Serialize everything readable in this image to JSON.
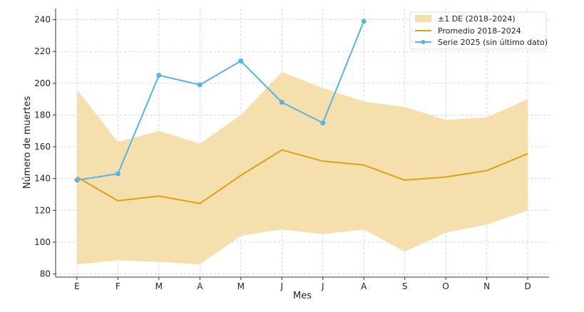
{
  "chart_data": {
    "type": "line",
    "title": "",
    "xlabel": "Mes",
    "ylabel": "Número de muertes",
    "categories": [
      "E",
      "F",
      "M",
      "A",
      "M",
      "J",
      "J",
      "A",
      "S",
      "O",
      "N",
      "D"
    ],
    "ylim": [
      78,
      247
    ],
    "yticks": [
      80,
      100,
      120,
      140,
      160,
      180,
      200,
      220,
      240
    ],
    "grid": true,
    "legend_position": "top-right",
    "band": {
      "name": "±1 DE (2018–2024)",
      "color": "#f5dfac",
      "upper": [
        196,
        163,
        170,
        162,
        180,
        207,
        197,
        188.5,
        185,
        177,
        178.5,
        190
      ],
      "lower": [
        86,
        88.6,
        87.5,
        86,
        104,
        108,
        105,
        108,
        94,
        106,
        111,
        120
      ]
    },
    "series": [
      {
        "name": "Promedio 2018–2024",
        "color": "#e0a010",
        "values": [
          141,
          126,
          129,
          124.3,
          142,
          158,
          151,
          148.5,
          139,
          141,
          145,
          155.7
        ],
        "markers": false
      },
      {
        "name": "Serie 2025 (sin último dato)",
        "color": "#56b4e9",
        "values": [
          139,
          143,
          205,
          199,
          214,
          188,
          175,
          239,
          null,
          null,
          null,
          null
        ],
        "markers": true
      }
    ]
  }
}
